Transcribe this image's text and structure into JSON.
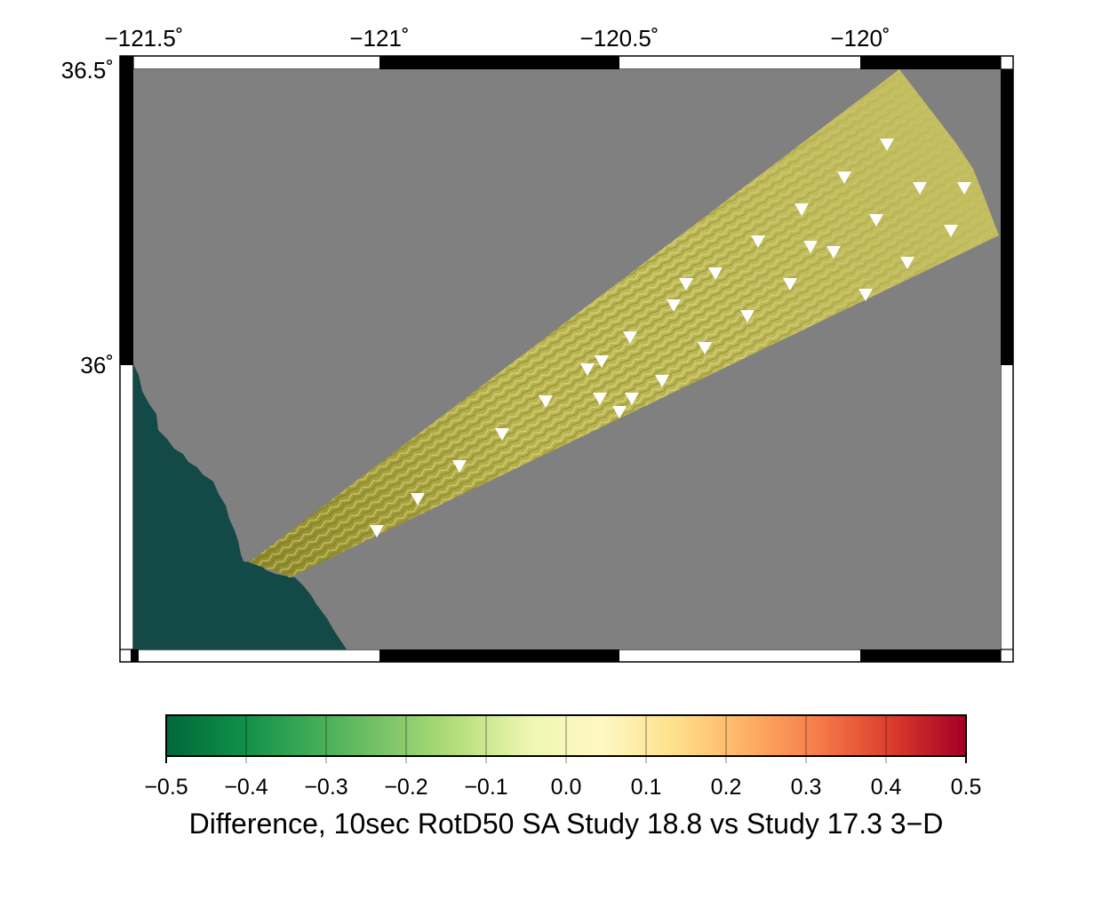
{
  "map": {
    "lon_ticks": [
      "−121.5˚",
      "−121˚",
      "−120.5˚",
      "−120˚"
    ],
    "lat_ticks": [
      "36.5˚",
      "36˚"
    ],
    "colors": {
      "land": "#808080",
      "ocean": "#134a47",
      "study_region": "#c2bd5c",
      "station_marker": "#ffffff"
    },
    "marker_icon": "inverted-triangle-icon"
  },
  "colorbar": {
    "ticks": [
      "−0.5",
      "−0.4",
      "−0.3",
      "−0.2",
      "−0.1",
      "0.0",
      "0.1",
      "0.2",
      "0.3",
      "0.4",
      "0.5"
    ],
    "title": "Difference, 10sec RotD50 SA Study 18.8 vs Study 17.3 3−D",
    "range": [
      -0.5,
      0.5
    ],
    "colormap": [
      "#00693a",
      "#0f8e48",
      "#3fac56",
      "#7cc468",
      "#b5df7c",
      "#eef7b1",
      "#fef8c2",
      "#fee08b",
      "#fdb165",
      "#f67b48",
      "#dc3c2d",
      "#a50026"
    ]
  }
}
